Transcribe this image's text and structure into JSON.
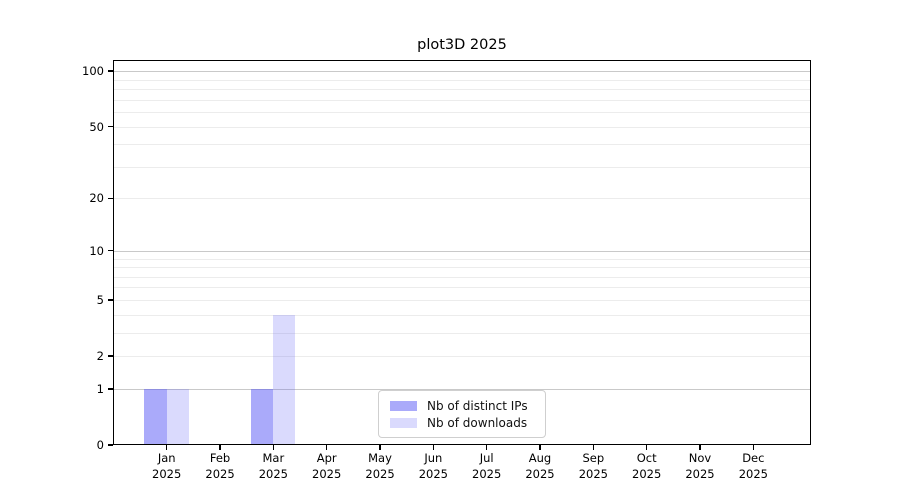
{
  "title": "plot3D 2025",
  "chart_data": {
    "type": "bar",
    "title": "plot3D 2025",
    "x_categories": [
      "Jan",
      "Feb",
      "Mar",
      "Apr",
      "May",
      "Jun",
      "Jul",
      "Aug",
      "Sep",
      "Oct",
      "Nov",
      "Dec"
    ],
    "x_year": "2025",
    "series": [
      {
        "name": "Nb of distinct IPs",
        "color": "rgba(85,85,245,0.50)",
        "values": [
          1,
          0,
          1,
          0,
          0,
          0,
          0,
          0,
          0,
          0,
          0,
          0
        ]
      },
      {
        "name": "Nb of downloads",
        "color": "rgba(85,85,245,0.22)",
        "values": [
          1,
          0,
          4,
          0,
          0,
          0,
          0,
          0,
          0,
          0,
          0,
          0
        ]
      }
    ],
    "y_axis": {
      "scale": "log1p",
      "range": [
        0,
        100
      ],
      "tick_values": [
        0,
        1,
        2,
        5,
        10,
        20,
        50,
        100
      ],
      "tick_labels": [
        "0",
        "1",
        "2",
        "5",
        "10",
        "20",
        "50",
        "100"
      ]
    },
    "gridlines": {
      "major_values": [
        1,
        10,
        100
      ],
      "minor_values": [
        2,
        3,
        4,
        5,
        6,
        7,
        8,
        9,
        20,
        30,
        40,
        50,
        60,
        70,
        80,
        90
      ],
      "major_color": "#c9c9c9",
      "minor_color": "#ececec"
    },
    "legend": {
      "position": "lower center inside",
      "entries": [
        "Nb of distinct IPs",
        "Nb of downloads"
      ]
    },
    "frame_color": "#000000",
    "background_color": "#ffffff"
  }
}
